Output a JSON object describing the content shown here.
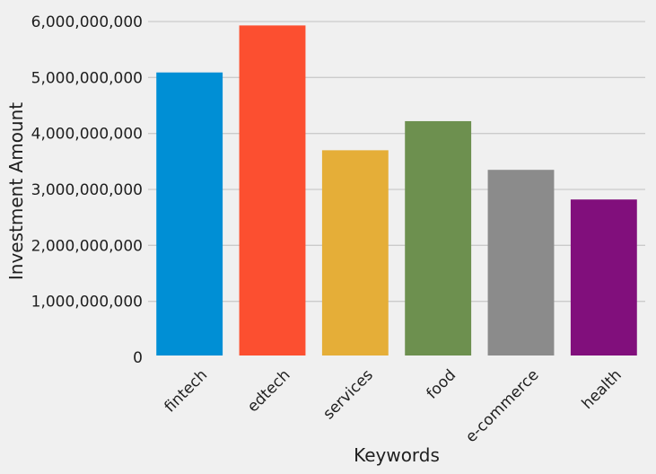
{
  "chart_data": {
    "type": "bar",
    "title": "",
    "xlabel": "Keywords",
    "ylabel": "Investment Amount",
    "categories": [
      "fintech",
      "edtech",
      "services",
      "food",
      "e-commerce",
      "health"
    ],
    "values": [
      5090000000,
      5930000000,
      3700000000,
      4220000000,
      3350000000,
      2820000000
    ],
    "colors": [
      "#008fd5",
      "#fc4f30",
      "#e5ae38",
      "#6d904f",
      "#8b8b8b",
      "#810f7c"
    ],
    "ylim": [
      0,
      6000000000
    ],
    "yticks": [
      0,
      1000000000,
      2000000000,
      3000000000,
      4000000000,
      5000000000,
      6000000000
    ],
    "ytick_labels": [
      "0",
      "1,000,000,000",
      "2,000,000,000",
      "3,000,000,000",
      "4,000,000,000",
      "5,000,000,000",
      "6,000,000,000"
    ],
    "grid": "horizontal",
    "background": "#f0f0f0"
  }
}
